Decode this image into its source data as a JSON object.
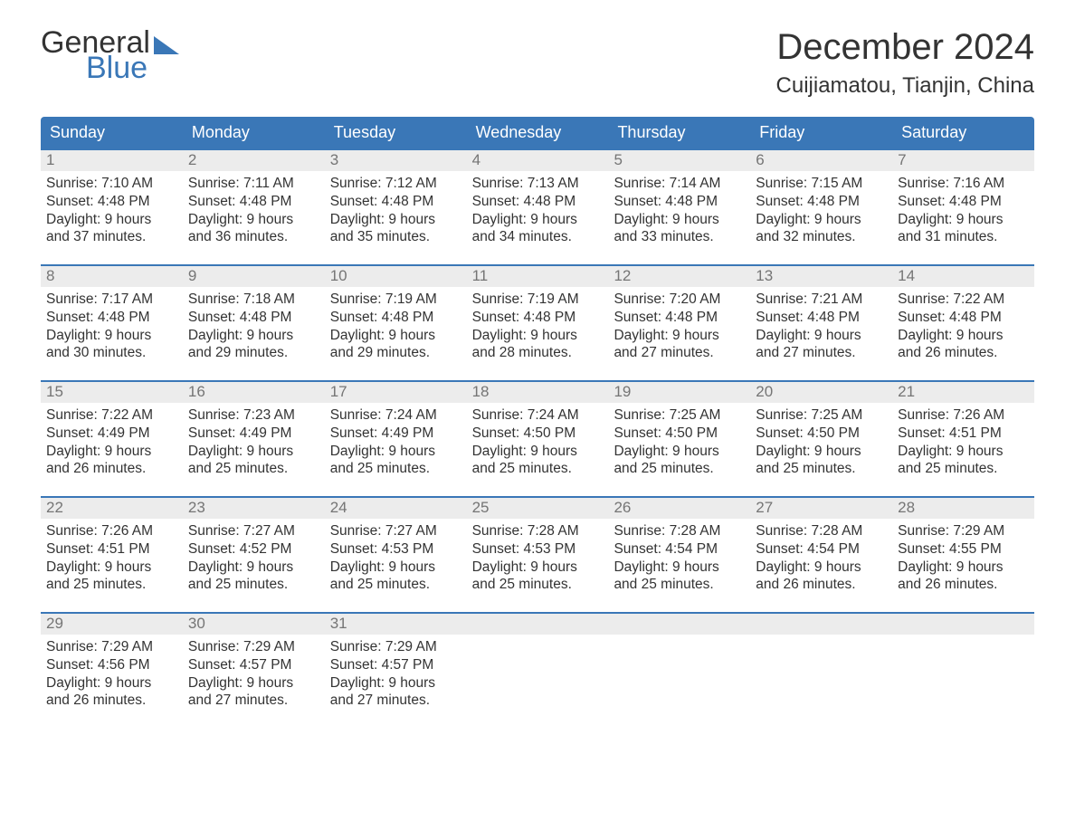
{
  "brand": {
    "part1": "General",
    "part2": "Blue"
  },
  "title": "December 2024",
  "location": "Cuijiamatou, Tianjin, China",
  "colors": {
    "primary": "#3a77b7",
    "daynum_bg": "#ececec",
    "daynum_text": "#757575",
    "body_text": "#333333",
    "page_bg": "#ffffff"
  },
  "fonts": {
    "title_size_pt": 30,
    "location_size_pt": 18,
    "weekday_size_pt": 13,
    "daynum_size_pt": 13,
    "body_size_pt": 11.5
  },
  "layout": {
    "columns": 7,
    "rows": 5
  },
  "weekdays": [
    "Sunday",
    "Monday",
    "Tuesday",
    "Wednesday",
    "Thursday",
    "Friday",
    "Saturday"
  ],
  "labels": {
    "sunrise": "Sunrise:",
    "sunset": "Sunset:",
    "daylight": "Daylight:"
  },
  "days": [
    {
      "n": 1,
      "sunrise": "7:10 AM",
      "sunset": "4:48 PM",
      "daylight_h": 9,
      "daylight_m": 37
    },
    {
      "n": 2,
      "sunrise": "7:11 AM",
      "sunset": "4:48 PM",
      "daylight_h": 9,
      "daylight_m": 36
    },
    {
      "n": 3,
      "sunrise": "7:12 AM",
      "sunset": "4:48 PM",
      "daylight_h": 9,
      "daylight_m": 35
    },
    {
      "n": 4,
      "sunrise": "7:13 AM",
      "sunset": "4:48 PM",
      "daylight_h": 9,
      "daylight_m": 34
    },
    {
      "n": 5,
      "sunrise": "7:14 AM",
      "sunset": "4:48 PM",
      "daylight_h": 9,
      "daylight_m": 33
    },
    {
      "n": 6,
      "sunrise": "7:15 AM",
      "sunset": "4:48 PM",
      "daylight_h": 9,
      "daylight_m": 32
    },
    {
      "n": 7,
      "sunrise": "7:16 AM",
      "sunset": "4:48 PM",
      "daylight_h": 9,
      "daylight_m": 31
    },
    {
      "n": 8,
      "sunrise": "7:17 AM",
      "sunset": "4:48 PM",
      "daylight_h": 9,
      "daylight_m": 30
    },
    {
      "n": 9,
      "sunrise": "7:18 AM",
      "sunset": "4:48 PM",
      "daylight_h": 9,
      "daylight_m": 29
    },
    {
      "n": 10,
      "sunrise": "7:19 AM",
      "sunset": "4:48 PM",
      "daylight_h": 9,
      "daylight_m": 29
    },
    {
      "n": 11,
      "sunrise": "7:19 AM",
      "sunset": "4:48 PM",
      "daylight_h": 9,
      "daylight_m": 28
    },
    {
      "n": 12,
      "sunrise": "7:20 AM",
      "sunset": "4:48 PM",
      "daylight_h": 9,
      "daylight_m": 27
    },
    {
      "n": 13,
      "sunrise": "7:21 AM",
      "sunset": "4:48 PM",
      "daylight_h": 9,
      "daylight_m": 27
    },
    {
      "n": 14,
      "sunrise": "7:22 AM",
      "sunset": "4:48 PM",
      "daylight_h": 9,
      "daylight_m": 26
    },
    {
      "n": 15,
      "sunrise": "7:22 AM",
      "sunset": "4:49 PM",
      "daylight_h": 9,
      "daylight_m": 26
    },
    {
      "n": 16,
      "sunrise": "7:23 AM",
      "sunset": "4:49 PM",
      "daylight_h": 9,
      "daylight_m": 25
    },
    {
      "n": 17,
      "sunrise": "7:24 AM",
      "sunset": "4:49 PM",
      "daylight_h": 9,
      "daylight_m": 25
    },
    {
      "n": 18,
      "sunrise": "7:24 AM",
      "sunset": "4:50 PM",
      "daylight_h": 9,
      "daylight_m": 25
    },
    {
      "n": 19,
      "sunrise": "7:25 AM",
      "sunset": "4:50 PM",
      "daylight_h": 9,
      "daylight_m": 25
    },
    {
      "n": 20,
      "sunrise": "7:25 AM",
      "sunset": "4:50 PM",
      "daylight_h": 9,
      "daylight_m": 25
    },
    {
      "n": 21,
      "sunrise": "7:26 AM",
      "sunset": "4:51 PM",
      "daylight_h": 9,
      "daylight_m": 25
    },
    {
      "n": 22,
      "sunrise": "7:26 AM",
      "sunset": "4:51 PM",
      "daylight_h": 9,
      "daylight_m": 25
    },
    {
      "n": 23,
      "sunrise": "7:27 AM",
      "sunset": "4:52 PM",
      "daylight_h": 9,
      "daylight_m": 25
    },
    {
      "n": 24,
      "sunrise": "7:27 AM",
      "sunset": "4:53 PM",
      "daylight_h": 9,
      "daylight_m": 25
    },
    {
      "n": 25,
      "sunrise": "7:28 AM",
      "sunset": "4:53 PM",
      "daylight_h": 9,
      "daylight_m": 25
    },
    {
      "n": 26,
      "sunrise": "7:28 AM",
      "sunset": "4:54 PM",
      "daylight_h": 9,
      "daylight_m": 25
    },
    {
      "n": 27,
      "sunrise": "7:28 AM",
      "sunset": "4:54 PM",
      "daylight_h": 9,
      "daylight_m": 26
    },
    {
      "n": 28,
      "sunrise": "7:29 AM",
      "sunset": "4:55 PM",
      "daylight_h": 9,
      "daylight_m": 26
    },
    {
      "n": 29,
      "sunrise": "7:29 AM",
      "sunset": "4:56 PM",
      "daylight_h": 9,
      "daylight_m": 26
    },
    {
      "n": 30,
      "sunrise": "7:29 AM",
      "sunset": "4:57 PM",
      "daylight_h": 9,
      "daylight_m": 27
    },
    {
      "n": 31,
      "sunrise": "7:29 AM",
      "sunset": "4:57 PM",
      "daylight_h": 9,
      "daylight_m": 27
    }
  ],
  "start_weekday_index": 0,
  "trailing_empty": 4
}
